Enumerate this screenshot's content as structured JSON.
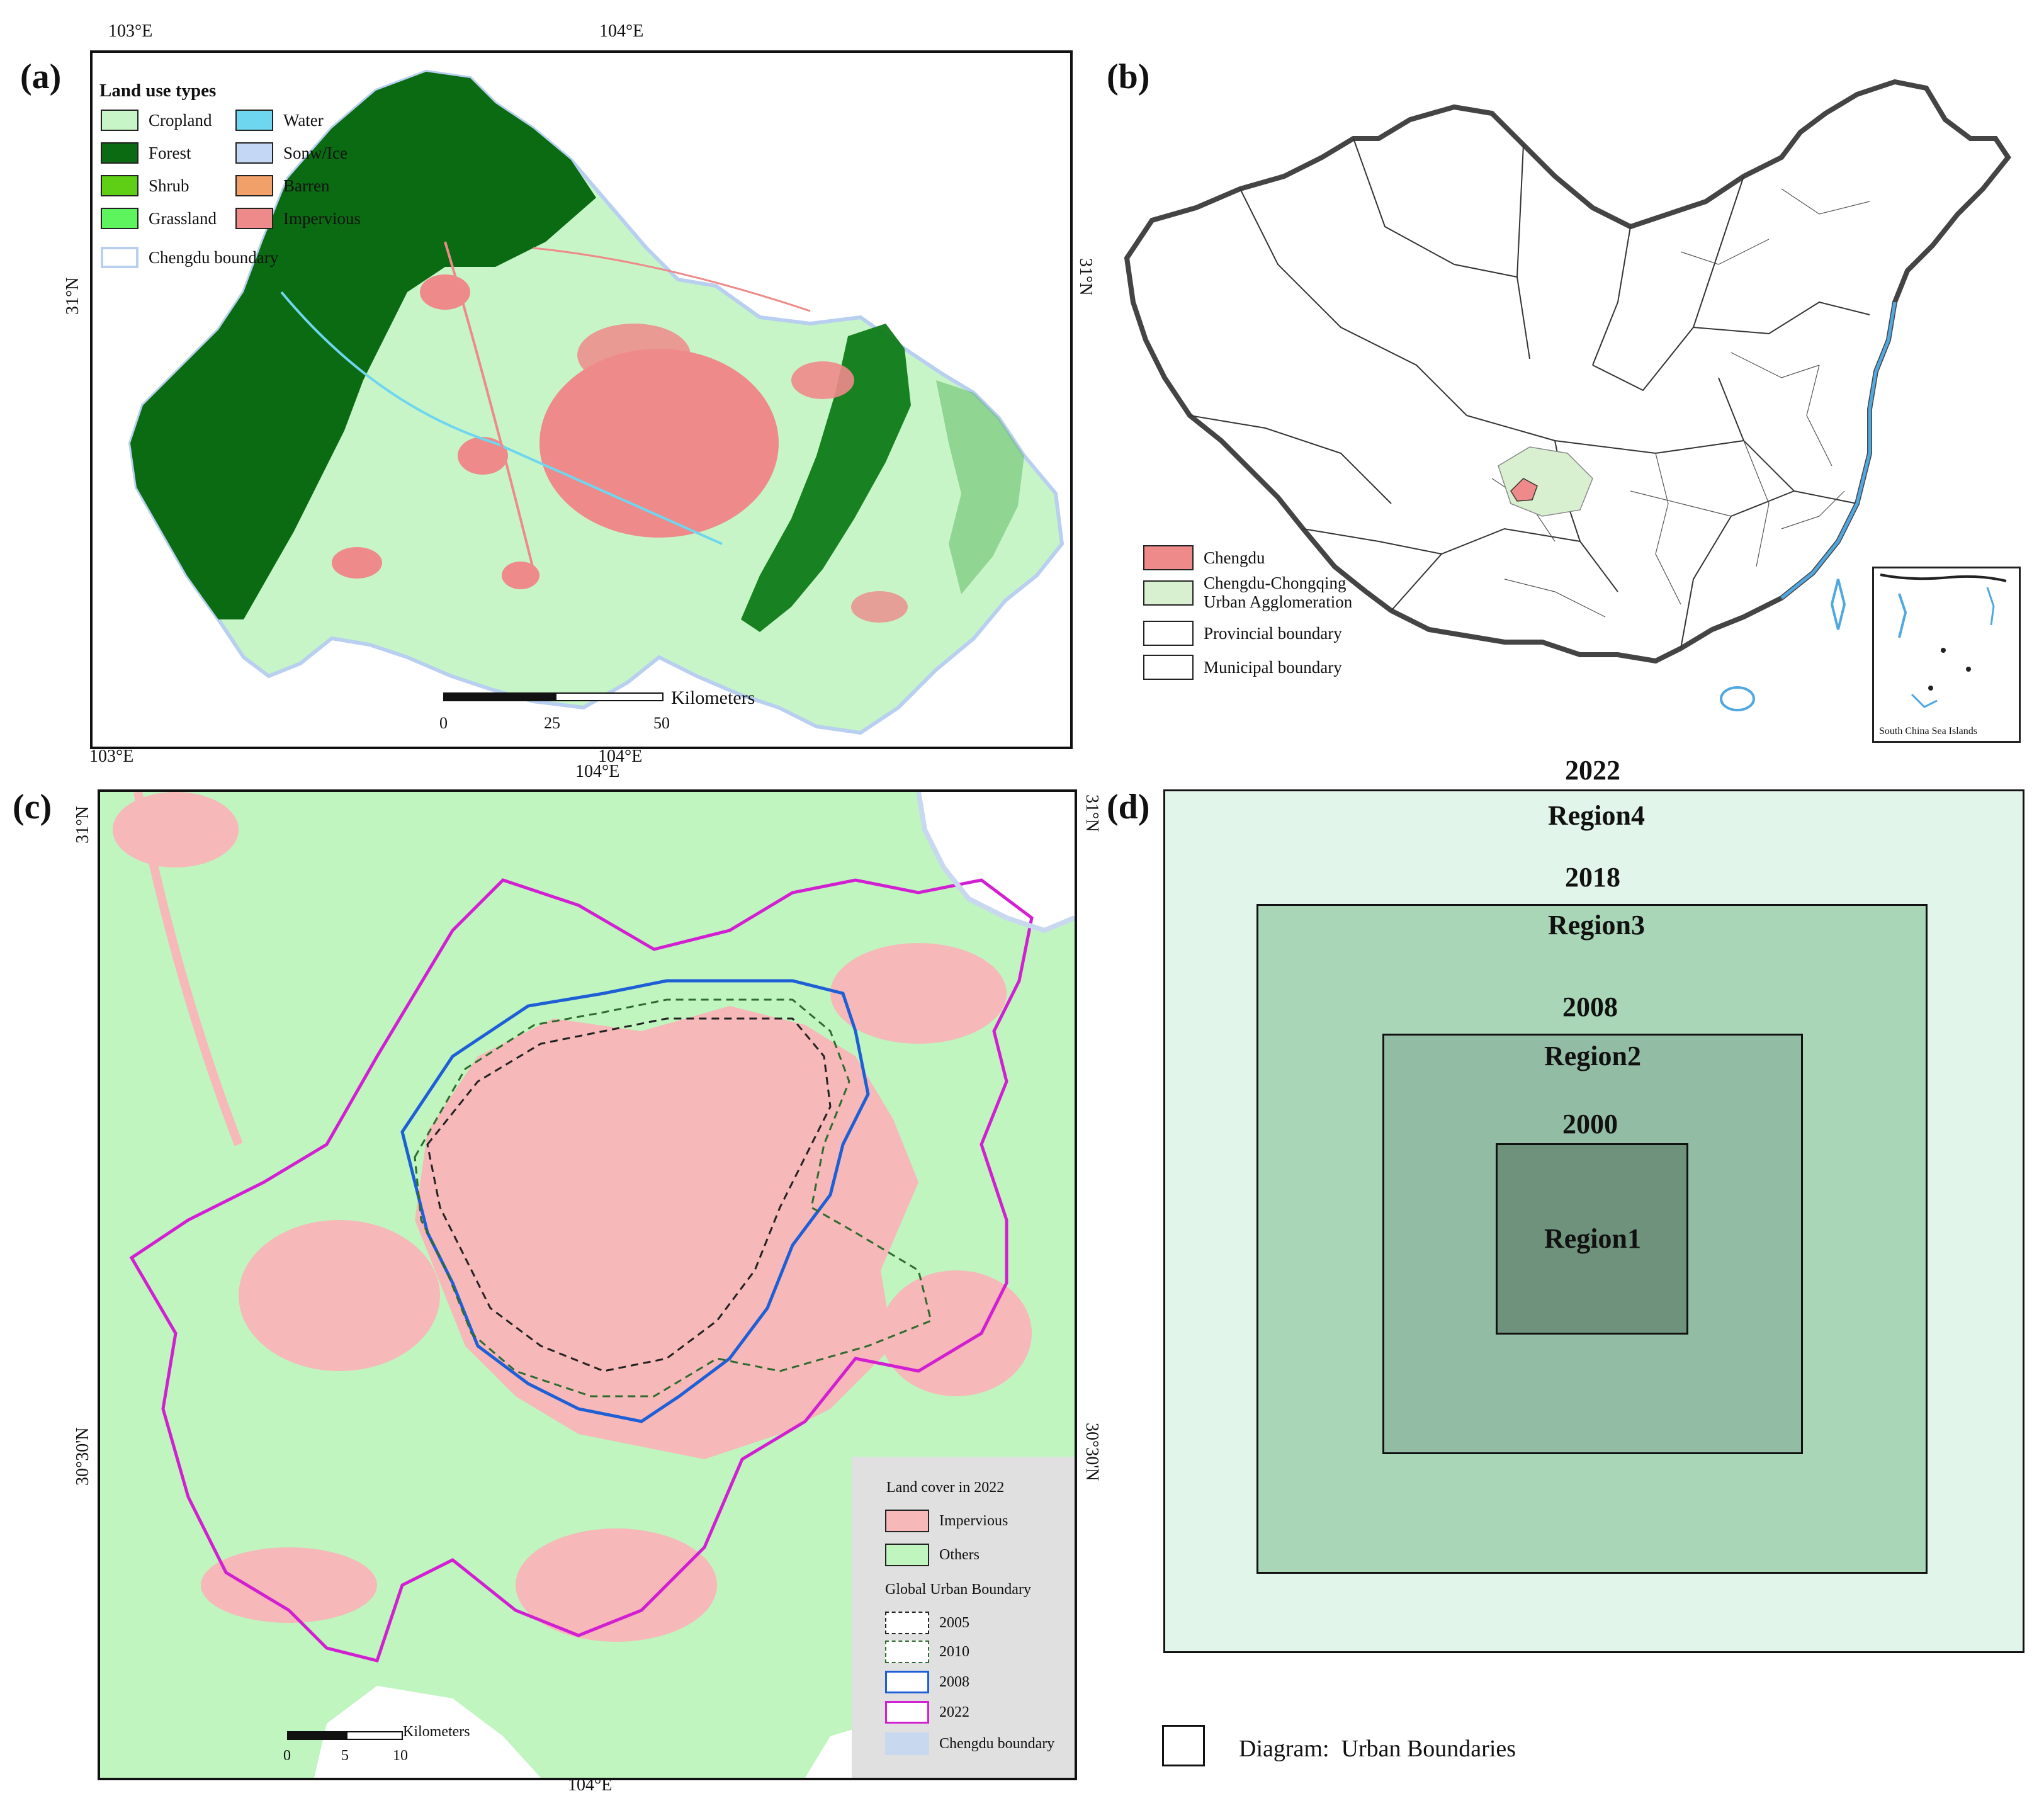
{
  "panels": {
    "a": {
      "label": "(a)",
      "top_ticks": [
        "103°E",
        "104°E"
      ],
      "bottom_ticks": [
        "103°E",
        "104°E"
      ],
      "left_tick": "31°N",
      "right_tick": "31°N",
      "legend": {
        "title": "Land use types",
        "items": [
          {
            "label": "Cropland",
            "color": "#c8f5c8"
          },
          {
            "label": "Water",
            "color": "#6fd6ef"
          },
          {
            "label": "Forest",
            "color": "#0a6b12"
          },
          {
            "label": "Sonw/Ice",
            "color": "#c4d8f5"
          },
          {
            "label": "Shrub",
            "color": "#5ecf14"
          },
          {
            "label": "Barren",
            "color": "#f2a06a"
          },
          {
            "label": "Grassland",
            "color": "#5ef45e"
          },
          {
            "label": "Impervious",
            "color": "#ee8a8a"
          }
        ],
        "boundary_label": "Chengdu boundary",
        "boundary_color": "#b8cff0"
      },
      "scale": {
        "unit": "Kilometers",
        "ticks": [
          "0",
          "25",
          "50"
        ]
      }
    },
    "b": {
      "label": "(b)",
      "legend": [
        {
          "label": "Chengdu",
          "color": "#ee8a8a"
        },
        {
          "label": "Chengdu-Chongqing\nUrban Agglomeration",
          "color": "#d8f0d0"
        },
        {
          "label": "Provincial boundary",
          "color": "#ffffff"
        },
        {
          "label": "Municipal boundary",
          "color": "#ffffff"
        }
      ],
      "inset_label": "South China Sea Islands"
    },
    "c": {
      "label": "(c)",
      "top_tick": "104°E",
      "bottom_tick": "104°E",
      "left_ticks": [
        "31°N",
        "30°30'N"
      ],
      "right_ticks": [
        "31°N",
        "30°30'N"
      ],
      "legend": {
        "title1": "Land cover in 2022",
        "impervious": {
          "label": "Impervious",
          "color": "#f6b8b8"
        },
        "others": {
          "label": "Others",
          "color": "#c0f5c0"
        },
        "title2": "Global Urban Boundary",
        "boundaries": [
          {
            "label": "2005",
            "color": "#222222",
            "dashed": true
          },
          {
            "label": "2010",
            "color": "#2e6b2e",
            "dashed": true
          },
          {
            "label": "2008",
            "color": "#1f5fd6",
            "dashed": false
          },
          {
            "label": "2022",
            "color": "#d21fd2",
            "dashed": false
          }
        ],
        "chengdu_boundary": {
          "label": "Chengdu boundary",
          "color": "#c8d8ee"
        }
      },
      "scale": {
        "unit": "Kilometers",
        "ticks": [
          "0",
          "5",
          "10"
        ]
      }
    },
    "d": {
      "label": "(d)",
      "regions": [
        {
          "year": "2022",
          "name": "Region4",
          "color": "#e2f5ea"
        },
        {
          "year": "2018",
          "name": "Region3",
          "color": "#a8d6b6"
        },
        {
          "year": "2008",
          "name": "Region2",
          "color": "#93bca5"
        },
        {
          "year": "2000",
          "name": "Region1",
          "color": "#6e927c"
        }
      ],
      "caption": "Diagram:  Urban Boundaries"
    }
  }
}
